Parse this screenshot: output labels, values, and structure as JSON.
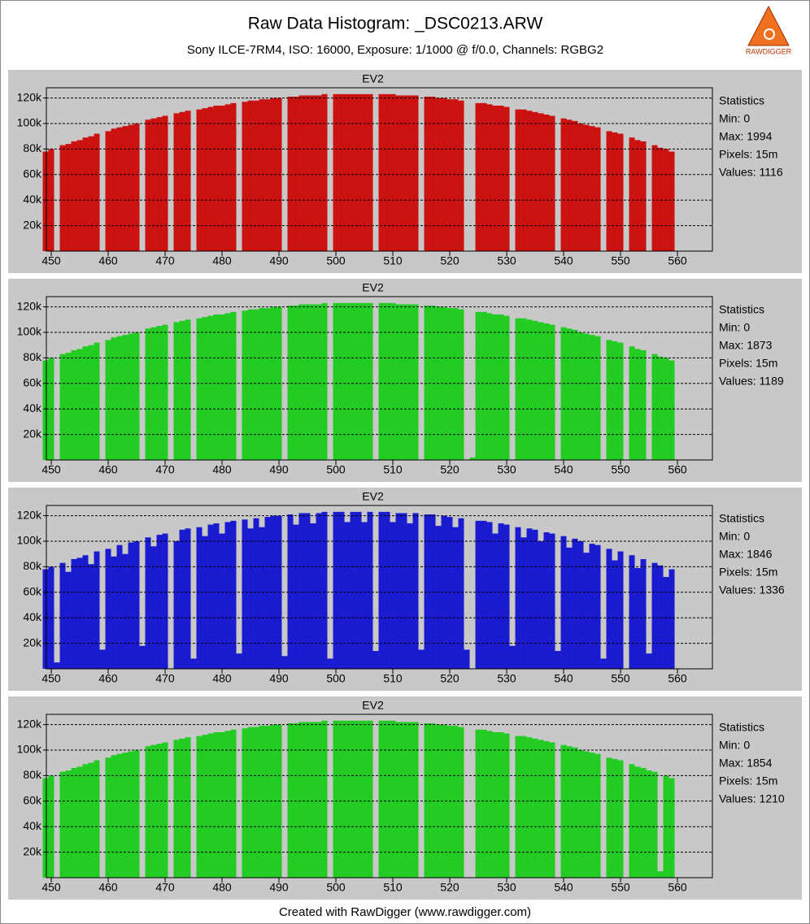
{
  "header": {
    "title": "Raw Data Histogram: _DSC0213.ARW",
    "subtitle": "Sony ILCE-7RM4, ISO: 16000, Exposure: 1/1000 @ f/0.0, Channels: RGBG2",
    "logo": "RAWDIGGER"
  },
  "footer": "Created with RawDigger (www.rawdigger.com)",
  "chart_data": [
    {
      "type": "bar",
      "title": "EV2",
      "color": "#cc1111",
      "xlim": [
        449.14,
        566.14
      ],
      "ylim": [
        0,
        128000
      ],
      "xticks": [
        450,
        460,
        470,
        480,
        490,
        500,
        510,
        520,
        530,
        540,
        550,
        560
      ],
      "yticks": [
        {
          "value": 20000,
          "label": "20k"
        },
        {
          "value": 40000,
          "label": "40k"
        },
        {
          "value": 60000,
          "label": "60k"
        },
        {
          "value": 80000,
          "label": "80k"
        },
        {
          "value": 100000,
          "label": "100k"
        },
        {
          "value": 120000,
          "label": "120k"
        }
      ],
      "grid": true,
      "stats": [
        "Statistics",
        "Min: 0",
        "Max: 1994",
        "Pixels: 15m",
        "Values: 1116"
      ],
      "x": [
        449,
        450,
        451,
        452,
        453,
        454,
        455,
        456,
        457,
        458,
        459,
        460,
        461,
        462,
        463,
        464,
        465,
        466,
        467,
        468,
        469,
        470,
        471,
        472,
        473,
        474,
        475,
        476,
        477,
        478,
        479,
        480,
        481,
        482,
        483,
        484,
        485,
        486,
        487,
        488,
        489,
        490,
        491,
        492,
        493,
        494,
        495,
        496,
        497,
        498,
        499,
        500,
        501,
        502,
        503,
        504,
        505,
        506,
        507,
        508,
        509,
        510,
        511,
        512,
        513,
        514,
        515,
        516,
        517,
        518,
        519,
        520,
        521,
        522,
        523,
        524,
        525,
        526,
        527,
        528,
        529,
        530,
        531,
        532,
        533,
        534,
        535,
        536,
        537,
        538,
        539,
        540,
        541,
        542,
        543,
        544,
        545,
        546,
        547,
        548,
        549,
        550,
        551,
        552,
        553,
        554,
        555,
        556,
        557,
        558,
        559
      ],
      "values": [
        78000,
        80000,
        0,
        83000,
        84000,
        86000,
        87000,
        89000,
        90000,
        92000,
        0,
        94000,
        96000,
        97000,
        98000,
        99000,
        100000,
        0,
        103000,
        104000,
        105000,
        106000,
        0,
        108000,
        109000,
        110000,
        0,
        111000,
        112000,
        113000,
        114000,
        114000,
        115000,
        116000,
        0,
        117000,
        118000,
        118000,
        119000,
        119000,
        120000,
        120000,
        0,
        121000,
        121000,
        122000,
        122000,
        122000,
        122000,
        123000,
        0,
        123000,
        123000,
        123000,
        123000,
        123000,
        123000,
        123000,
        0,
        123000,
        123000,
        123000,
        122000,
        122000,
        122000,
        122000,
        0,
        121000,
        121000,
        120000,
        120000,
        119000,
        119000,
        118000,
        0,
        0,
        116000,
        116000,
        115000,
        114000,
        114000,
        113000,
        0,
        111000,
        111000,
        110000,
        109000,
        108000,
        107000,
        106000,
        0,
        104000,
        103000,
        102000,
        100000,
        99000,
        98000,
        97000,
        0,
        94000,
        93000,
        92000,
        0,
        89000,
        87000,
        86000,
        0,
        83000,
        81000,
        80000,
        78000
      ]
    },
    {
      "type": "bar",
      "title": "EV2",
      "color": "#22cc22",
      "xlim": [
        449.14,
        566.14
      ],
      "ylim": [
        0,
        128000
      ],
      "xticks": [
        450,
        460,
        470,
        480,
        490,
        500,
        510,
        520,
        530,
        540,
        550,
        560
      ],
      "yticks": [
        {
          "value": 20000,
          "label": "20k"
        },
        {
          "value": 40000,
          "label": "40k"
        },
        {
          "value": 60000,
          "label": "60k"
        },
        {
          "value": 80000,
          "label": "80k"
        },
        {
          "value": 100000,
          "label": "100k"
        },
        {
          "value": 120000,
          "label": "120k"
        }
      ],
      "grid": true,
      "stats": [
        "Statistics",
        "Min: 0",
        "Max: 1873",
        "Pixels: 15m",
        "Values: 1189"
      ],
      "x": [
        449,
        450,
        451,
        452,
        453,
        454,
        455,
        456,
        457,
        458,
        459,
        460,
        461,
        462,
        463,
        464,
        465,
        466,
        467,
        468,
        469,
        470,
        471,
        472,
        473,
        474,
        475,
        476,
        477,
        478,
        479,
        480,
        481,
        482,
        483,
        484,
        485,
        486,
        487,
        488,
        489,
        490,
        491,
        492,
        493,
        494,
        495,
        496,
        497,
        498,
        499,
        500,
        501,
        502,
        503,
        504,
        505,
        506,
        507,
        508,
        509,
        510,
        511,
        512,
        513,
        514,
        515,
        516,
        517,
        518,
        519,
        520,
        521,
        522,
        523,
        524,
        525,
        526,
        527,
        528,
        529,
        530,
        531,
        532,
        533,
        534,
        535,
        536,
        537,
        538,
        539,
        540,
        541,
        542,
        543,
        544,
        545,
        546,
        547,
        548,
        549,
        550,
        551,
        552,
        553,
        554,
        555,
        556,
        557,
        558,
        559
      ],
      "values": [
        78000,
        80000,
        0,
        83000,
        84000,
        86000,
        87000,
        89000,
        90000,
        92000,
        0,
        94000,
        96000,
        97000,
        98000,
        99000,
        100000,
        0,
        103000,
        104000,
        105000,
        106000,
        0,
        108000,
        109000,
        110000,
        0,
        111000,
        112000,
        113000,
        114000,
        114000,
        115000,
        116000,
        0,
        117000,
        118000,
        118000,
        119000,
        119000,
        120000,
        120000,
        0,
        121000,
        121000,
        122000,
        122000,
        122000,
        122000,
        123000,
        0,
        123000,
        123000,
        123000,
        123000,
        123000,
        123000,
        123000,
        0,
        123000,
        123000,
        123000,
        122000,
        122000,
        122000,
        122000,
        0,
        121000,
        121000,
        120000,
        120000,
        119000,
        119000,
        118000,
        0,
        2000,
        116000,
        116000,
        115000,
        114000,
        114000,
        113000,
        0,
        111000,
        111000,
        110000,
        109000,
        108000,
        107000,
        106000,
        0,
        104000,
        103000,
        102000,
        100000,
        99000,
        98000,
        97000,
        0,
        94000,
        93000,
        92000,
        0,
        89000,
        87000,
        86000,
        0,
        83000,
        81000,
        80000,
        78000
      ]
    },
    {
      "type": "bar",
      "title": "EV2",
      "color": "#1a1ad0",
      "xlim": [
        449.14,
        566.14
      ],
      "ylim": [
        0,
        128000
      ],
      "xticks": [
        450,
        460,
        470,
        480,
        490,
        500,
        510,
        520,
        530,
        540,
        550,
        560
      ],
      "yticks": [
        {
          "value": 20000,
          "label": "20k"
        },
        {
          "value": 40000,
          "label": "40k"
        },
        {
          "value": 60000,
          "label": "60k"
        },
        {
          "value": 80000,
          "label": "80k"
        },
        {
          "value": 100000,
          "label": "100k"
        },
        {
          "value": 120000,
          "label": "120k"
        }
      ],
      "grid": true,
      "stats": [
        "Statistics",
        "Min: 0",
        "Max: 1846",
        "Pixels: 15m",
        "Values: 1336"
      ],
      "x": [
        449,
        450,
        451,
        452,
        453,
        454,
        455,
        456,
        457,
        458,
        459,
        460,
        461,
        462,
        463,
        464,
        465,
        466,
        467,
        468,
        469,
        470,
        471,
        472,
        473,
        474,
        475,
        476,
        477,
        478,
        479,
        480,
        481,
        482,
        483,
        484,
        485,
        486,
        487,
        488,
        489,
        490,
        491,
        492,
        493,
        494,
        495,
        496,
        497,
        498,
        499,
        500,
        501,
        502,
        503,
        504,
        505,
        506,
        507,
        508,
        509,
        510,
        511,
        512,
        513,
        514,
        515,
        516,
        517,
        518,
        519,
        520,
        521,
        522,
        523,
        524,
        525,
        526,
        527,
        528,
        529,
        530,
        531,
        532,
        533,
        534,
        535,
        536,
        537,
        538,
        539,
        540,
        541,
        542,
        543,
        544,
        545,
        546,
        547,
        548,
        549,
        550,
        551,
        552,
        553,
        554,
        555,
        556,
        557,
        558,
        559
      ],
      "values": [
        78000,
        80000,
        5000,
        83000,
        76000,
        86000,
        87000,
        89000,
        82000,
        92000,
        15000,
        94000,
        88000,
        97000,
        90000,
        99000,
        100000,
        18000,
        103000,
        96000,
        105000,
        106000,
        0,
        100000,
        109000,
        110000,
        8000,
        111000,
        104000,
        113000,
        114000,
        106000,
        115000,
        116000,
        12000,
        117000,
        110000,
        118000,
        111000,
        119000,
        120000,
        120000,
        10000,
        121000,
        113000,
        122000,
        122000,
        114000,
        122000,
        123000,
        8000,
        123000,
        123000,
        115000,
        123000,
        123000,
        115000,
        123000,
        14000,
        123000,
        123000,
        115000,
        122000,
        122000,
        114000,
        122000,
        15000,
        121000,
        121000,
        112000,
        120000,
        119000,
        111000,
        118000,
        15000,
        0,
        116000,
        116000,
        115000,
        106000,
        114000,
        113000,
        18000,
        111000,
        103000,
        110000,
        109000,
        100000,
        107000,
        106000,
        14000,
        104000,
        95000,
        102000,
        100000,
        91000,
        98000,
        97000,
        8000,
        94000,
        85000,
        92000,
        0,
        89000,
        79000,
        86000,
        12000,
        83000,
        81000,
        72000,
        78000
      ]
    },
    {
      "type": "bar",
      "title": "EV2",
      "color": "#22cc22",
      "xlim": [
        449.14,
        566.14
      ],
      "ylim": [
        0,
        128000
      ],
      "xticks": [
        450,
        460,
        470,
        480,
        490,
        500,
        510,
        520,
        530,
        540,
        550,
        560
      ],
      "yticks": [
        {
          "value": 20000,
          "label": "20k"
        },
        {
          "value": 40000,
          "label": "40k"
        },
        {
          "value": 60000,
          "label": "60k"
        },
        {
          "value": 80000,
          "label": "80k"
        },
        {
          "value": 100000,
          "label": "100k"
        },
        {
          "value": 120000,
          "label": "120k"
        }
      ],
      "grid": true,
      "stats": [
        "Statistics",
        "Min: 0",
        "Max: 1854",
        "Pixels: 15m",
        "Values: 1210"
      ],
      "x": [
        449,
        450,
        451,
        452,
        453,
        454,
        455,
        456,
        457,
        458,
        459,
        460,
        461,
        462,
        463,
        464,
        465,
        466,
        467,
        468,
        469,
        470,
        471,
        472,
        473,
        474,
        475,
        476,
        477,
        478,
        479,
        480,
        481,
        482,
        483,
        484,
        485,
        486,
        487,
        488,
        489,
        490,
        491,
        492,
        493,
        494,
        495,
        496,
        497,
        498,
        499,
        500,
        501,
        502,
        503,
        504,
        505,
        506,
        507,
        508,
        509,
        510,
        511,
        512,
        513,
        514,
        515,
        516,
        517,
        518,
        519,
        520,
        521,
        522,
        523,
        524,
        525,
        526,
        527,
        528,
        529,
        530,
        531,
        532,
        533,
        534,
        535,
        536,
        537,
        538,
        539,
        540,
        541,
        542,
        543,
        544,
        545,
        546,
        547,
        548,
        549,
        550,
        551,
        552,
        553,
        554,
        555,
        556,
        557,
        558,
        559
      ],
      "values": [
        78000,
        80000,
        0,
        83000,
        84000,
        86000,
        87000,
        89000,
        90000,
        92000,
        0,
        94000,
        96000,
        97000,
        98000,
        99000,
        100000,
        0,
        103000,
        104000,
        105000,
        106000,
        0,
        108000,
        109000,
        110000,
        0,
        111000,
        112000,
        113000,
        114000,
        114000,
        115000,
        116000,
        0,
        117000,
        118000,
        118000,
        119000,
        119000,
        120000,
        120000,
        0,
        121000,
        121000,
        122000,
        122000,
        122000,
        122000,
        123000,
        0,
        123000,
        123000,
        123000,
        123000,
        123000,
        123000,
        123000,
        0,
        123000,
        123000,
        123000,
        122000,
        122000,
        122000,
        122000,
        0,
        121000,
        121000,
        120000,
        120000,
        119000,
        119000,
        118000,
        0,
        0,
        116000,
        116000,
        115000,
        114000,
        114000,
        113000,
        0,
        111000,
        111000,
        110000,
        109000,
        108000,
        107000,
        106000,
        0,
        104000,
        103000,
        102000,
        100000,
        99000,
        98000,
        97000,
        0,
        94000,
        93000,
        92000,
        0,
        89000,
        87000,
        86000,
        84000,
        83000,
        5000,
        80000,
        78000
      ]
    }
  ]
}
